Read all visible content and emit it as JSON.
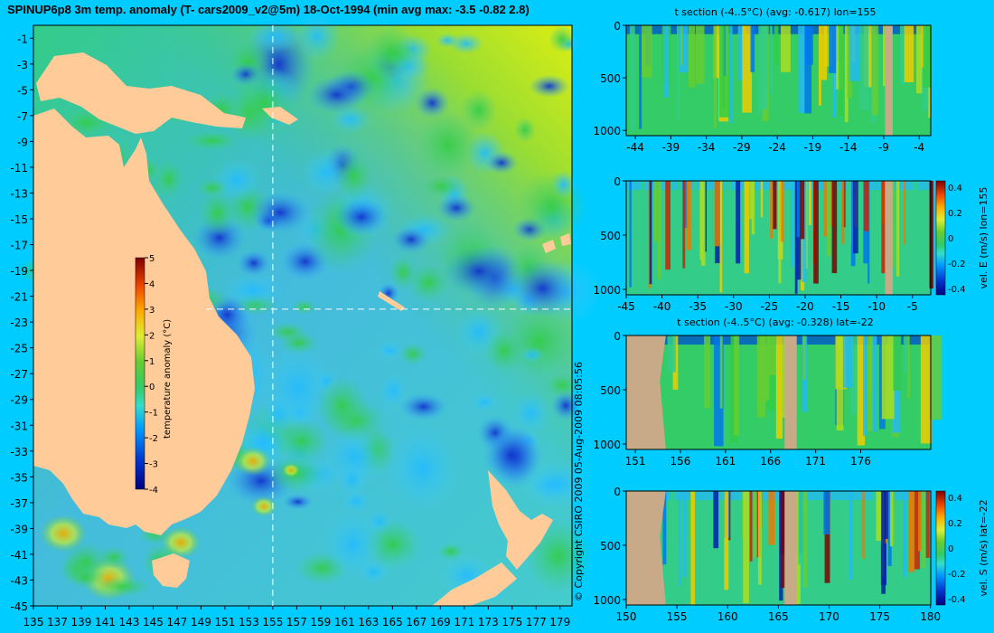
{
  "title": "SPINUP6p8 3m temp. anomaly (T- cars2009_v2@5m) 18-Oct-1994 (min avg max: -3.5 -0.82 2.8)",
  "copyright": "© Copyright CSIRO 2009  05-Aug-2009 08:05:56",
  "colors": {
    "background": "#00ccff",
    "land_map": "#ffcc99",
    "land_section": "#c8aa88",
    "ocean_mid": "#33cc66"
  },
  "chart_data": [
    {
      "type": "heatmap",
      "title": "",
      "xlabel": "",
      "ylabel": "",
      "xlim": [
        135,
        180
      ],
      "ylim": [
        -45,
        0
      ],
      "x_ticks": [
        "135",
        "137",
        "139",
        "141",
        "143",
        "145",
        "147",
        "149",
        "151",
        "153",
        "155",
        "157",
        "159",
        "161",
        "163",
        "165",
        "167",
        "169",
        "171",
        "173",
        "175",
        "177",
        "179"
      ],
      "y_ticks": [
        "-1",
        "-3",
        "-5",
        "-7",
        "-9",
        "-11",
        "-13",
        "-15",
        "-17",
        "-19",
        "-21",
        "-23",
        "-25",
        "-27",
        "-29",
        "-31",
        "-33",
        "-35",
        "-37",
        "-39",
        "-41",
        "-43",
        "-45"
      ],
      "colorbar": {
        "label": "temperature anomaly (°C)",
        "ticks": [
          "5",
          "4",
          "3",
          "2",
          "1",
          "0",
          "-1",
          "-2",
          "-3",
          "-4"
        ],
        "range": [
          -4,
          5
        ]
      },
      "crosshair": {
        "lon": 155,
        "lat": -22
      }
    },
    {
      "type": "heatmap",
      "title": "t section (-4..5°C) (avg: -0.617) lon=155",
      "x_ticks": [
        "-44",
        "-39",
        "-34",
        "-29",
        "-24",
        "-19",
        "-14",
        "-9",
        "-4"
      ],
      "y_ticks": [
        "0",
        "500",
        "1000"
      ],
      "ylim": [
        1050,
        0
      ]
    },
    {
      "type": "heatmap",
      "title": "",
      "x_ticks": [
        "-45",
        "-40",
        "-35",
        "-30",
        "-25",
        "-20",
        "-15",
        "-10",
        "-5"
      ],
      "y_ticks": [
        "0",
        "500",
        "1000"
      ],
      "ylim": [
        1050,
        0
      ],
      "colorbar": {
        "label": "vel. E (m/s) lon=155",
        "ticks": [
          "0.4",
          "0.2",
          "0",
          "-0.2",
          "-0.4"
        ],
        "range": [
          -0.45,
          0.45
        ]
      }
    },
    {
      "type": "heatmap",
      "title": "t section (-4..5°C) (avg: -0.328) lat=-22",
      "x_ticks": [
        "151",
        "156",
        "161",
        "166",
        "171",
        "176"
      ],
      "y_ticks": [
        "0",
        "500",
        "1000"
      ],
      "ylim": [
        1050,
        0
      ]
    },
    {
      "type": "heatmap",
      "title": "",
      "x_ticks": [
        "150",
        "155",
        "160",
        "165",
        "170",
        "175",
        "180"
      ],
      "y_ticks": [
        "0",
        "500",
        "1000"
      ],
      "ylim": [
        1050,
        0
      ],
      "colorbar": {
        "label": "vel. S (m/s) lat=-22",
        "ticks": [
          "0.4",
          "0.2",
          "0",
          "-0.2",
          "-0.4"
        ],
        "range": [
          -0.45,
          0.45
        ]
      }
    }
  ]
}
